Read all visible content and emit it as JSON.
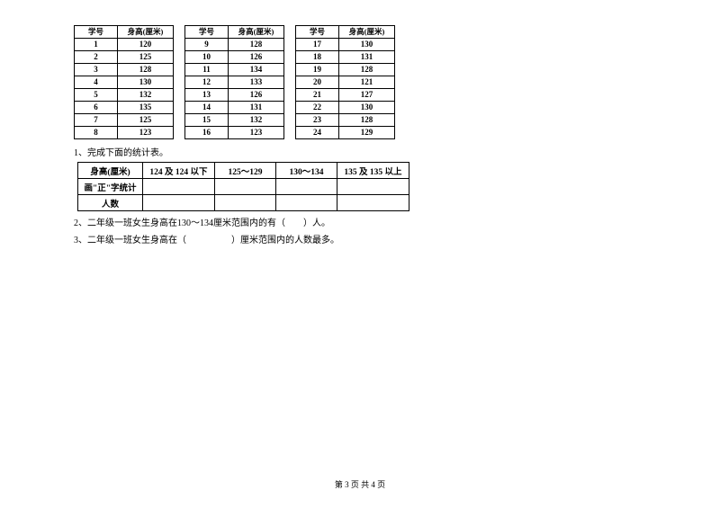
{
  "header_id": "学号",
  "header_height": "身高(厘米)",
  "tables": [
    [
      [
        "1",
        "120"
      ],
      [
        "2",
        "125"
      ],
      [
        "3",
        "128"
      ],
      [
        "4",
        "130"
      ],
      [
        "5",
        "132"
      ],
      [
        "6",
        "135"
      ],
      [
        "7",
        "125"
      ],
      [
        "8",
        "123"
      ]
    ],
    [
      [
        "9",
        "128"
      ],
      [
        "10",
        "126"
      ],
      [
        "11",
        "134"
      ],
      [
        "12",
        "133"
      ],
      [
        "13",
        "126"
      ],
      [
        "14",
        "131"
      ],
      [
        "15",
        "132"
      ],
      [
        "16",
        "123"
      ]
    ],
    [
      [
        "17",
        "130"
      ],
      [
        "18",
        "131"
      ],
      [
        "19",
        "128"
      ],
      [
        "20",
        "121"
      ],
      [
        "21",
        "127"
      ],
      [
        "22",
        "130"
      ],
      [
        "23",
        "128"
      ],
      [
        "24",
        "129"
      ]
    ]
  ],
  "q1_text": "1、完成下面的统计表。",
  "stat_headers": [
    "身高(厘米)",
    "124 及 124 以下",
    "125～129",
    "130～134",
    "135 及 135 以上"
  ],
  "stat_row_labels": [
    "画\"正\"字统计",
    "人数"
  ],
  "q2_text": "2、二年级一班女生身高在130～134厘米范围内的有（　　）人。",
  "q3_text": "3、二年级一班女生身高在（　　　　　）厘米范围内的人数最多。",
  "footer": "第 3 页 共 4 页"
}
